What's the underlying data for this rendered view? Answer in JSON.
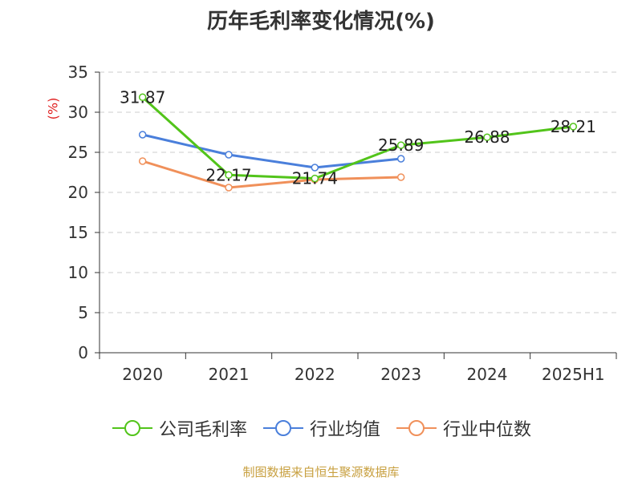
{
  "title": "历年毛利率变化情况(%)",
  "y_unit": "(%)",
  "footer": "制图数据来自恒生聚源数据库",
  "chart_data": {
    "type": "line",
    "categories": [
      "2020",
      "2021",
      "2022",
      "2023",
      "2024",
      "2025H1"
    ],
    "ylim": [
      0,
      35
    ],
    "yticks": [
      0,
      5,
      10,
      15,
      20,
      25,
      30,
      35
    ],
    "grid": true,
    "legend_position": "bottom",
    "series": [
      {
        "name": "公司毛利率",
        "color": "#52c41a",
        "values": [
          31.87,
          22.17,
          21.74,
          25.89,
          26.88,
          28.21
        ],
        "labels": [
          "31.87",
          "22.17",
          "21.74",
          "25.89",
          "26.88",
          "28.21"
        ]
      },
      {
        "name": "行业均值",
        "color": "#4a7fdb",
        "values": [
          27.2,
          24.7,
          23.1,
          24.2,
          null,
          null
        ]
      },
      {
        "name": "行业中位数",
        "color": "#f0905a",
        "values": [
          23.9,
          20.6,
          21.6,
          21.9,
          null,
          null
        ]
      }
    ]
  }
}
